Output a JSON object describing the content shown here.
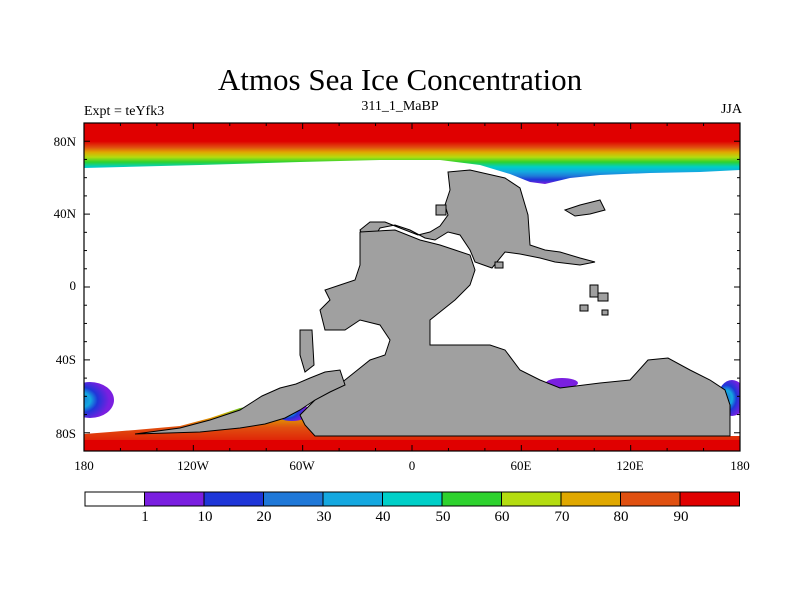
{
  "header": {
    "title": "Atmos Sea Ice Concentration",
    "left_label": "Expt = teYfk3",
    "center_label": "311_1_MaBP",
    "right_label": "JJA"
  },
  "map": {
    "lat_ticks": [
      "80N",
      "40N",
      "0",
      "40S",
      "80S"
    ],
    "lon_ticks": [
      "180",
      "120W",
      "60W",
      "0",
      "60E",
      "120E",
      "180"
    ],
    "land_color": "#a0a0a0",
    "missing_color": "#ffffff"
  },
  "colorbar": {
    "labels": [
      "1",
      "10",
      "20",
      "30",
      "40",
      "50",
      "60",
      "70",
      "80",
      "90"
    ],
    "colors": [
      "#ffffff",
      "#7a1fe0",
      "#1e36d8",
      "#1f78d8",
      "#14a8e0",
      "#00cfc8",
      "#2ed22e",
      "#b4dc10",
      "#e0a800",
      "#e05010",
      "#e00000"
    ]
  }
}
